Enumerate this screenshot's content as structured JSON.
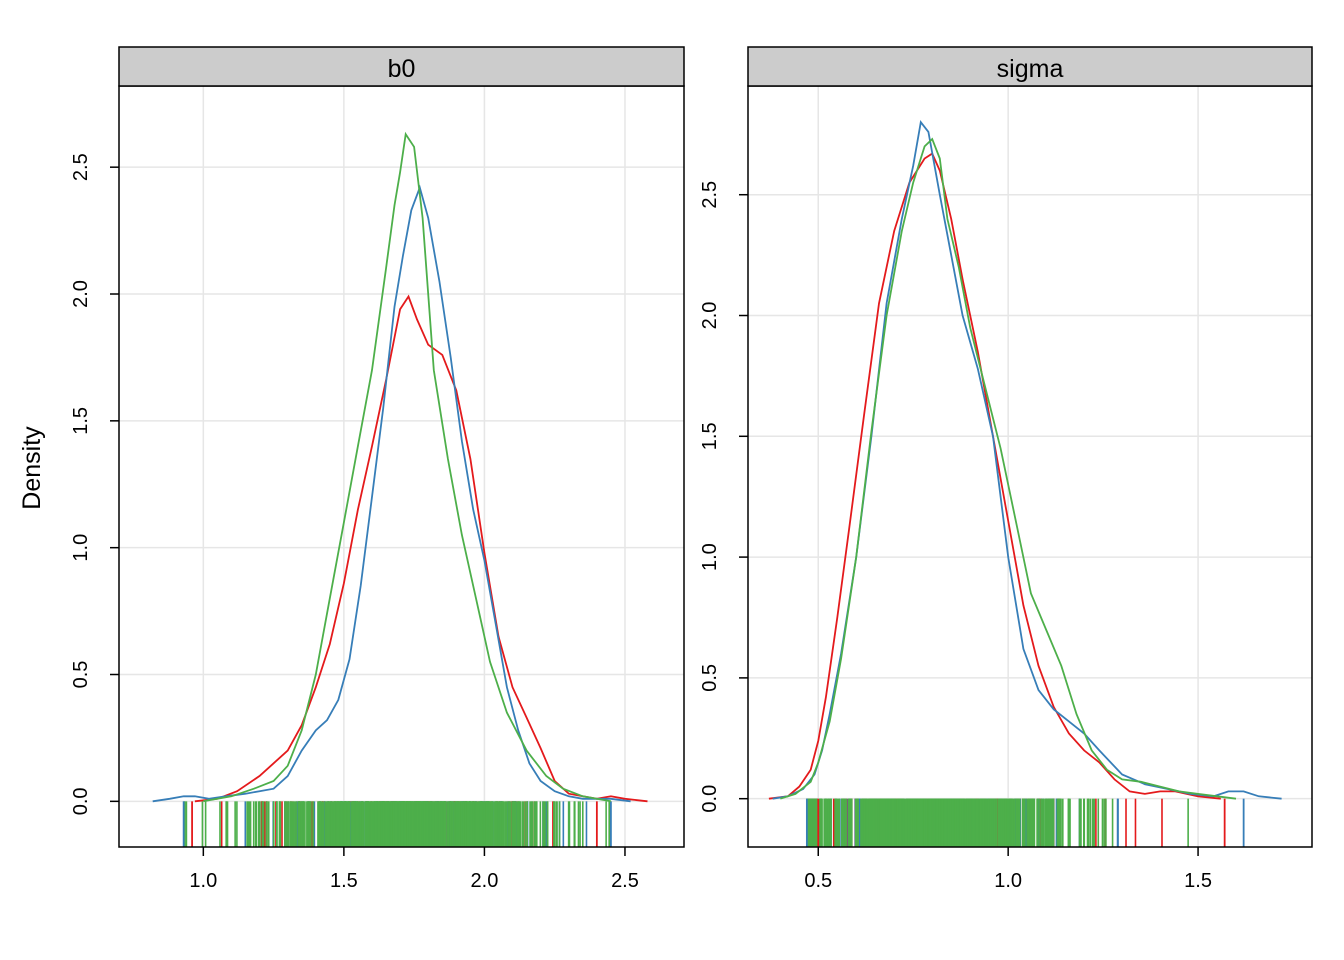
{
  "figure": {
    "ylabel": "Density"
  },
  "colors": {
    "chain1": "#e41a1c",
    "chain2": "#377eb8",
    "chain3": "#4daf4a",
    "strip_bg": "#cccccc",
    "grid": "#e6e6e6"
  },
  "chart_data": [
    {
      "type": "line",
      "title": "b0",
      "xlabel": "",
      "ylabel": "Density",
      "xlim": [
        0.7,
        2.71
      ],
      "ylim": [
        -0.18,
        2.82
      ],
      "xticks": [
        1.0,
        1.5,
        2.0,
        2.5
      ],
      "xtick_labels": [
        "1.0",
        "1.5",
        "2.0",
        "2.5"
      ],
      "yticks": [
        0.0,
        0.5,
        1.0,
        1.5,
        2.0,
        2.5
      ],
      "ytick_labels": [
        "0.0",
        "0.5",
        "1.0",
        "1.5",
        "2.0",
        "2.5"
      ],
      "grid": true,
      "series": [
        {
          "color": "#e41a1c",
          "x": [
            0.97,
            1.05,
            1.12,
            1.2,
            1.25,
            1.3,
            1.35,
            1.4,
            1.45,
            1.5,
            1.55,
            1.6,
            1.65,
            1.7,
            1.73,
            1.76,
            1.8,
            1.85,
            1.9,
            1.95,
            2.0,
            2.05,
            2.1,
            2.15,
            2.2,
            2.25,
            2.3,
            2.35,
            2.4,
            2.45,
            2.5,
            2.58
          ],
          "y": [
            0.0,
            0.01,
            0.04,
            0.1,
            0.15,
            0.2,
            0.3,
            0.45,
            0.62,
            0.86,
            1.15,
            1.4,
            1.66,
            1.94,
            1.99,
            1.9,
            1.8,
            1.76,
            1.62,
            1.35,
            0.98,
            0.65,
            0.45,
            0.33,
            0.21,
            0.08,
            0.03,
            0.02,
            0.01,
            0.02,
            0.01,
            0.0
          ]
        },
        {
          "color": "#377eb8",
          "x": [
            0.82,
            0.88,
            0.93,
            0.97,
            1.02,
            1.08,
            1.15,
            1.2,
            1.25,
            1.3,
            1.35,
            1.4,
            1.44,
            1.48,
            1.52,
            1.56,
            1.6,
            1.64,
            1.68,
            1.71,
            1.74,
            1.77,
            1.8,
            1.84,
            1.88,
            1.92,
            1.96,
            2.0,
            2.04,
            2.08,
            2.12,
            2.16,
            2.2,
            2.25,
            2.3,
            2.35,
            2.4,
            2.45,
            2.52
          ],
          "y": [
            0.0,
            0.01,
            0.02,
            0.02,
            0.01,
            0.02,
            0.03,
            0.04,
            0.05,
            0.1,
            0.2,
            0.28,
            0.32,
            0.4,
            0.56,
            0.85,
            1.2,
            1.55,
            1.95,
            2.15,
            2.33,
            2.42,
            2.3,
            2.05,
            1.75,
            1.42,
            1.15,
            0.95,
            0.7,
            0.45,
            0.28,
            0.15,
            0.08,
            0.04,
            0.02,
            0.01,
            0.01,
            0.01,
            0.0
          ]
        },
        {
          "color": "#4daf4a",
          "x": [
            1.0,
            1.1,
            1.18,
            1.25,
            1.3,
            1.35,
            1.4,
            1.45,
            1.5,
            1.55,
            1.6,
            1.65,
            1.68,
            1.7,
            1.72,
            1.75,
            1.78,
            1.82,
            1.87,
            1.92,
            1.97,
            2.02,
            2.08,
            2.15,
            2.22,
            2.28,
            2.35,
            2.45
          ],
          "y": [
            0.0,
            0.02,
            0.05,
            0.08,
            0.14,
            0.28,
            0.5,
            0.8,
            1.1,
            1.4,
            1.7,
            2.1,
            2.35,
            2.48,
            2.63,
            2.58,
            2.3,
            1.7,
            1.35,
            1.05,
            0.8,
            0.55,
            0.35,
            0.2,
            0.1,
            0.05,
            0.02,
            0.0
          ]
        }
      ],
      "rug_min": 0.93,
      "rug_max": 2.45
    },
    {
      "type": "line",
      "title": "sigma",
      "xlabel": "",
      "ylabel": "",
      "xlim": [
        0.315,
        1.8
      ],
      "ylim": [
        -0.2,
        2.95
      ],
      "xticks": [
        0.5,
        1.0,
        1.5
      ],
      "xtick_labels": [
        "0.5",
        "1.0",
        "1.5"
      ],
      "yticks": [
        0.0,
        0.5,
        1.0,
        1.5,
        2.0,
        2.5
      ],
      "ytick_labels": [
        "0.0",
        "0.5",
        "1.0",
        "1.5",
        "2.0",
        "2.5"
      ],
      "grid": true,
      "series": [
        {
          "color": "#e41a1c",
          "x": [
            0.37,
            0.42,
            0.45,
            0.48,
            0.5,
            0.52,
            0.55,
            0.58,
            0.62,
            0.66,
            0.7,
            0.74,
            0.78,
            0.8,
            0.82,
            0.85,
            0.88,
            0.92,
            0.96,
            1.0,
            1.04,
            1.08,
            1.12,
            1.16,
            1.2,
            1.24,
            1.28,
            1.32,
            1.36,
            1.4,
            1.44,
            1.5,
            1.56
          ],
          "y": [
            0.0,
            0.01,
            0.05,
            0.12,
            0.24,
            0.42,
            0.75,
            1.1,
            1.58,
            2.05,
            2.35,
            2.55,
            2.65,
            2.67,
            2.6,
            2.4,
            2.15,
            1.85,
            1.5,
            1.15,
            0.8,
            0.55,
            0.38,
            0.27,
            0.2,
            0.15,
            0.08,
            0.03,
            0.02,
            0.03,
            0.03,
            0.01,
            0.0
          ]
        },
        {
          "color": "#377eb8",
          "x": [
            0.38,
            0.42,
            0.46,
            0.49,
            0.51,
            0.53,
            0.56,
            0.6,
            0.64,
            0.68,
            0.72,
            0.75,
            0.77,
            0.79,
            0.82,
            0.85,
            0.88,
            0.92,
            0.96,
            1.0,
            1.04,
            1.08,
            1.12,
            1.16,
            1.2,
            1.24,
            1.3,
            1.36,
            1.42,
            1.48,
            1.54,
            1.58,
            1.62,
            1.66,
            1.72
          ],
          "y": [
            0.0,
            0.01,
            0.04,
            0.1,
            0.2,
            0.35,
            0.6,
            1.0,
            1.5,
            2.05,
            2.4,
            2.62,
            2.8,
            2.76,
            2.5,
            2.25,
            2.0,
            1.78,
            1.5,
            1.0,
            0.62,
            0.45,
            0.37,
            0.32,
            0.27,
            0.2,
            0.1,
            0.06,
            0.04,
            0.02,
            0.01,
            0.03,
            0.03,
            0.01,
            0.0
          ]
        },
        {
          "color": "#4daf4a",
          "x": [
            0.4,
            0.44,
            0.48,
            0.5,
            0.53,
            0.56,
            0.6,
            0.64,
            0.68,
            0.72,
            0.75,
            0.78,
            0.8,
            0.82,
            0.84,
            0.87,
            0.9,
            0.94,
            0.98,
            1.02,
            1.06,
            1.1,
            1.14,
            1.18,
            1.22,
            1.26,
            1.3,
            1.35,
            1.4,
            1.45,
            1.5,
            1.55,
            1.6
          ],
          "y": [
            0.0,
            0.02,
            0.07,
            0.15,
            0.32,
            0.58,
            1.0,
            1.52,
            2.0,
            2.35,
            2.55,
            2.7,
            2.73,
            2.65,
            2.4,
            2.2,
            1.95,
            1.7,
            1.45,
            1.15,
            0.85,
            0.7,
            0.55,
            0.35,
            0.2,
            0.12,
            0.08,
            0.07,
            0.05,
            0.03,
            0.02,
            0.01,
            0.0
          ]
        }
      ],
      "rug_min": 0.47,
      "rug_max": 1.62
    }
  ]
}
